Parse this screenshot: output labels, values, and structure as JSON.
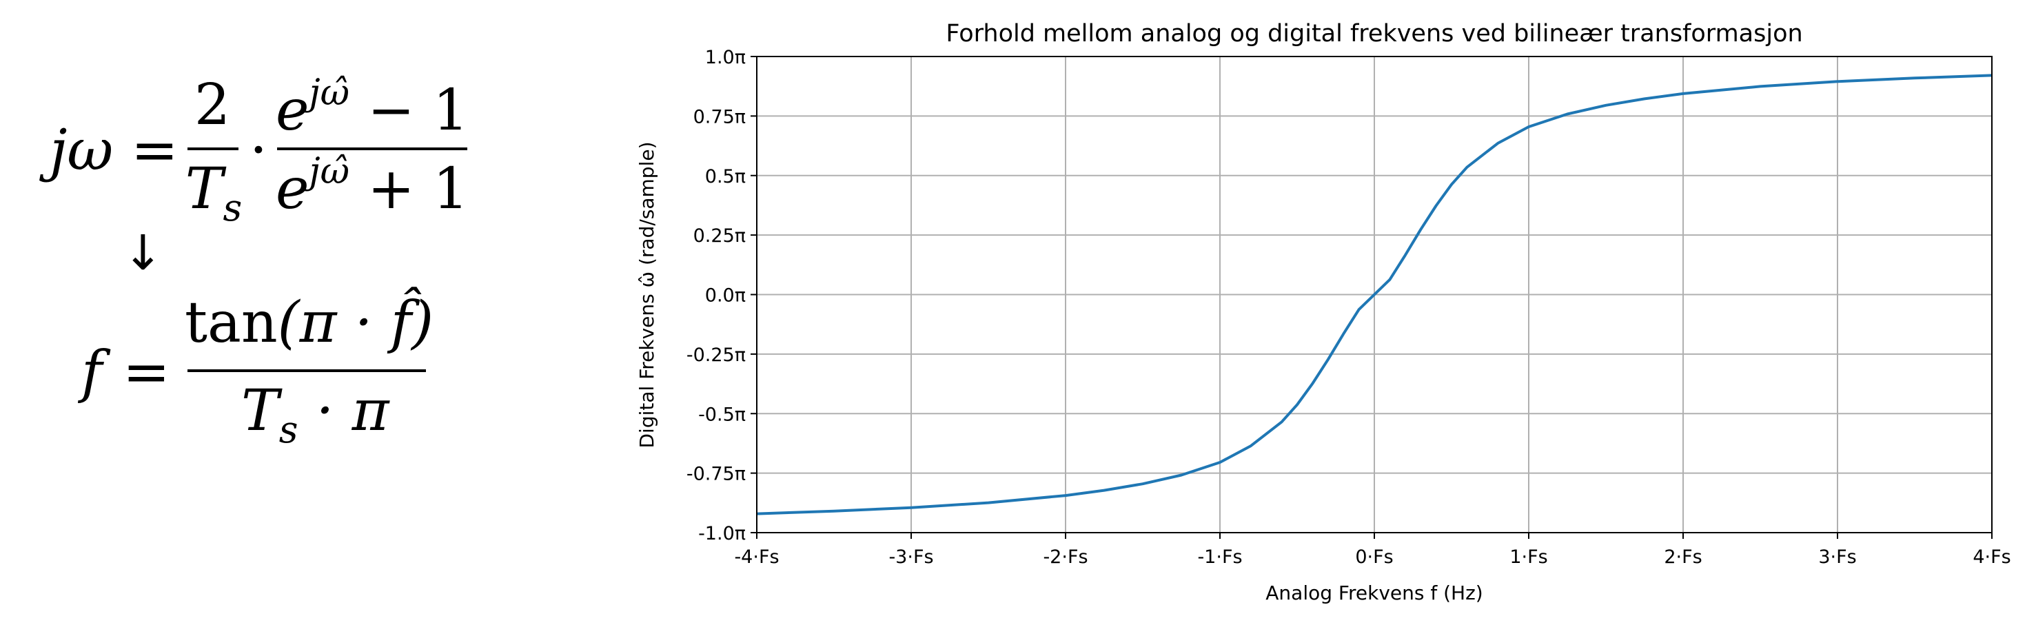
{
  "equations": {
    "eq1": {
      "lhs": "jω",
      "equals": "=",
      "frac1_num": "2",
      "frac1_den": "T",
      "frac1_den_sub": "s",
      "dot": "·",
      "frac2_num_base": "e",
      "frac2_num_exp": "jω̂",
      "frac2_num_rest": " − 1",
      "frac2_den_base": "e",
      "frac2_den_exp": "jω̂",
      "frac2_den_rest": " + 1"
    },
    "arrow": "↓",
    "eq2": {
      "lhs": "f",
      "equals": "=",
      "num_fn": "tan",
      "num_arg": "(π · f̂)",
      "den": "T",
      "den_sub": "s",
      "den_rest": " · π"
    }
  },
  "chart_data": {
    "type": "line",
    "title": "Forhold mellom analog og digital frekvens ved bilineær transformasjon",
    "xlabel": "Analog Frekvens f (Hz)",
    "ylabel": "Digital Frekvens ω̂ (rad/sample)",
    "xlim": [
      -4,
      4
    ],
    "ylim": [
      -1.0,
      1.0
    ],
    "x_unit": "Fs",
    "y_unit": "π",
    "grid": true,
    "xticks": [
      -4,
      -3,
      -2,
      -1,
      0,
      1,
      2,
      3,
      4
    ],
    "xtick_labels": [
      "-4·Fs",
      "-3·Fs",
      "-2·Fs",
      "-1·Fs",
      "0·Fs",
      "1·Fs",
      "2·Fs",
      "3·Fs",
      "4·Fs"
    ],
    "yticks": [
      -1.0,
      -0.75,
      -0.5,
      -0.25,
      0.0,
      0.25,
      0.5,
      0.75,
      1.0
    ],
    "ytick_labels": [
      "-1.0π",
      "-0.75π",
      "-0.5π",
      "-0.25π",
      "0.0π",
      "0.25π",
      "0.5π",
      "0.75π",
      "1.0π"
    ],
    "series": [
      {
        "color": "#1f77b4",
        "x": [
          -4,
          -3.5,
          -3,
          -2.5,
          -2,
          -1.75,
          -1.5,
          -1.25,
          -1,
          -0.8,
          -0.6,
          -0.5,
          -0.4,
          -0.3,
          -0.2,
          -0.1,
          0,
          0.1,
          0.2,
          0.3,
          0.4,
          0.5,
          0.6,
          0.8,
          1,
          1.25,
          1.5,
          1.75,
          2,
          2.5,
          3,
          3.5,
          4
        ],
        "y": [
          -0.9208,
          -0.9095,
          -0.8949,
          -0.8743,
          -0.844,
          -0.8222,
          -0.7952,
          -0.7582,
          -0.7048,
          -0.6356,
          -0.535,
          -0.4626,
          -0.3734,
          -0.2729,
          -0.1653,
          -0.0627,
          0,
          0.0627,
          0.1653,
          0.2729,
          0.3734,
          0.4626,
          0.535,
          0.6356,
          0.7048,
          0.7582,
          0.7952,
          0.8222,
          0.844,
          0.8743,
          0.8949,
          0.9095,
          0.9208
        ]
      }
    ]
  }
}
